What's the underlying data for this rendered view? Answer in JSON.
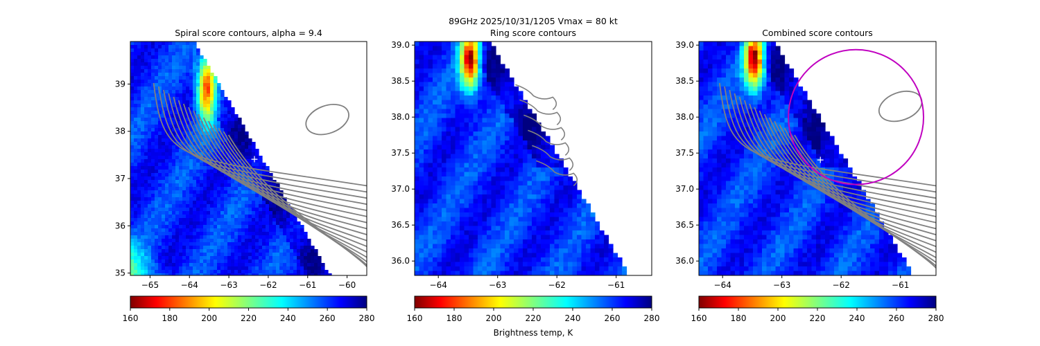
{
  "suptitle": {
    "line1": "89GHz  2025/10/31/1205    Vmax = 80 kt",
    "line2": "Ring score contours"
  },
  "colorbar_label": "Brightness temp, K",
  "colormap": "jet_r",
  "contour_color": "#808080",
  "center_marker_color": "#ffffff",
  "ring_color": "#c000c0",
  "chart_data": [
    {
      "type": "heatmap",
      "title": "Spiral score contours, alpha =  9.4",
      "xlim": [
        -65.5,
        -59.5
      ],
      "ylim": [
        34.95,
        39.9
      ],
      "xticks": [
        -65,
        -64,
        -63,
        -62,
        -61,
        -60
      ],
      "xtick_labels": [
        "−65",
        "−64",
        "−63",
        "−62",
        "−61",
        "−60"
      ],
      "yticks": [
        35,
        36,
        37,
        38,
        39
      ],
      "ytick_labels": [
        "35",
        "36",
        "37",
        "38",
        "39"
      ],
      "center": [
        -62.35,
        37.4
      ],
      "swath_edge": [
        [
          -63.85,
          39.9
        ],
        [
          -60.4,
          34.95
        ]
      ],
      "colorbar": {
        "min": 160,
        "max": 280,
        "ticks": [
          160,
          180,
          200,
          220,
          240,
          260,
          280
        ],
        "tick_labels": [
          "160",
          "180",
          "200",
          "220",
          "240",
          "260",
          "280"
        ]
      }
    },
    {
      "type": "heatmap",
      "title": "Ring score contours",
      "xlim": [
        -64.4,
        -60.4
      ],
      "ylim": [
        35.8,
        39.05
      ],
      "xticks": [
        -64,
        -63,
        -62,
        -61
      ],
      "xtick_labels": [
        "−64",
        "−63",
        "−62",
        "−61"
      ],
      "yticks": [
        36.0,
        36.5,
        37.0,
        37.5,
        38.0,
        38.5,
        39.0
      ],
      "ytick_labels": [
        "36.0",
        "36.5",
        "37.0",
        "37.5",
        "38.0",
        "38.5",
        "39.0"
      ],
      "center": null,
      "swath_edge": [
        [
          -63.1,
          39.05
        ],
        [
          -60.75,
          35.8
        ]
      ],
      "colorbar": {
        "min": 160,
        "max": 280,
        "ticks": [
          160,
          180,
          200,
          220,
          240,
          260,
          280
        ],
        "tick_labels": [
          "160",
          "180",
          "200",
          "220",
          "240",
          "260",
          "280"
        ]
      }
    },
    {
      "type": "heatmap",
      "title": "Combined score contours",
      "xlim": [
        -64.4,
        -60.4
      ],
      "ylim": [
        35.8,
        39.05
      ],
      "xticks": [
        -64,
        -63,
        -62,
        -61
      ],
      "xtick_labels": [
        "−64",
        "−63",
        "−62",
        "−61"
      ],
      "yticks": [
        36.0,
        36.5,
        37.0,
        37.5,
        38.0,
        38.5,
        39.0
      ],
      "ytick_labels": [
        "36.0",
        "36.5",
        "37.0",
        "37.5",
        "38.0",
        "38.5",
        "39.0"
      ],
      "center": [
        -62.35,
        37.4
      ],
      "swath_edge": [
        [
          -63.1,
          39.05
        ],
        [
          -60.75,
          35.8
        ]
      ],
      "ring": {
        "center": [
          -61.75,
          38.0
        ],
        "radius_deg": 1.14
      },
      "colorbar": {
        "min": 160,
        "max": 280,
        "ticks": [
          160,
          180,
          200,
          220,
          240,
          260,
          280
        ],
        "tick_labels": [
          "160",
          "180",
          "200",
          "220",
          "240",
          "260",
          "280"
        ]
      }
    }
  ]
}
